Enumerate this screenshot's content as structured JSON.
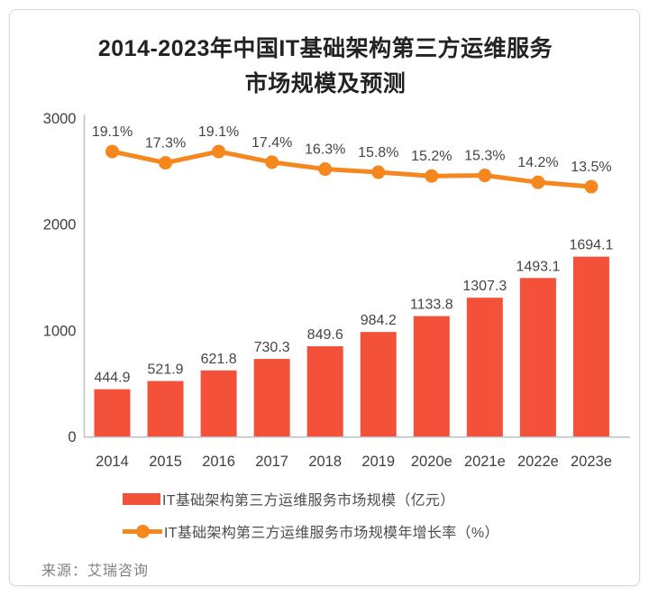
{
  "card": {
    "title_line1": "2014-2023年中国IT基础架构第三方运维服务",
    "title_line2": "市场规模及预测",
    "source": "来源：艾瑞咨询"
  },
  "legend": [
    {
      "type": "bar",
      "label": "IT基础架构第三方运维服务市场规模（亿元）"
    },
    {
      "type": "line",
      "label": "IT基础架构第三方运维服务市场规模年增长率（%）"
    }
  ],
  "colors": {
    "bar": "#f4513b",
    "line": "#f5871f",
    "axis": "#bfbfbf",
    "label": "#454545",
    "tick": "#404040",
    "title": "#222222",
    "source": "#808080"
  },
  "chart_data": {
    "type": "bar+line",
    "title": "2014-2023年中国IT基础架构第三方运维服务市场规模及预测",
    "categories": [
      "2014",
      "2015",
      "2016",
      "2017",
      "2018",
      "2019",
      "2020e",
      "2021e",
      "2022e",
      "2023e"
    ],
    "series": [
      {
        "name": "IT基础架构第三方运维服务市场规模（亿元）",
        "type": "bar",
        "unit": "亿元",
        "values": [
          444.9,
          521.9,
          621.8,
          730.3,
          849.6,
          984.2,
          1133.8,
          1307.3,
          1493.1,
          1694.1
        ]
      },
      {
        "name": "IT基础架构第三方运维服务市场规模年增长率（%）",
        "type": "line",
        "unit": "%",
        "values": [
          19.1,
          17.3,
          19.1,
          17.4,
          16.3,
          15.8,
          15.2,
          15.3,
          14.2,
          13.5
        ],
        "labels": [
          "19.1%",
          "17.3%",
          "19.1%",
          "17.4%",
          "16.3%",
          "15.8%",
          "15.2%",
          "15.3%",
          "14.2%",
          "13.5%"
        ]
      }
    ],
    "xlabel": "",
    "ylabel": "",
    "y_axis_ticks": [
      0,
      1000,
      2000,
      3000
    ],
    "ylim": [
      0,
      3000
    ],
    "grid": false,
    "legend_position": "bottom",
    "source": "来源：艾瑞咨询"
  }
}
